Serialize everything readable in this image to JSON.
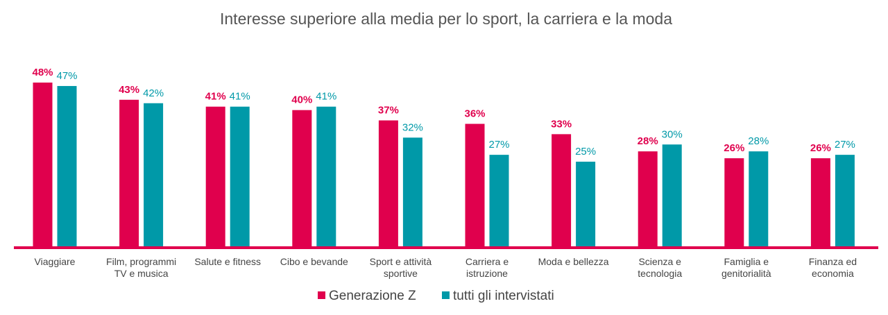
{
  "chart_data": {
    "type": "bar",
    "title": "Interesse superiore alla media per lo sport, la carriera e la moda",
    "xlabel": "",
    "ylabel": "",
    "ylim": [
      0,
      48
    ],
    "categories": [
      [
        "Viaggiare"
      ],
      [
        "Film, programmi",
        "TV e musica"
      ],
      [
        "Salute e fitness"
      ],
      [
        "Cibo e bevande"
      ],
      [
        "Sport e attività",
        "sportive"
      ],
      [
        "Carriera e",
        "istruzione"
      ],
      [
        "Moda e bellezza"
      ],
      [
        "Scienza e",
        "tecnologia"
      ],
      [
        "Famiglia e",
        "genitorialità"
      ],
      [
        "Finanza ed",
        "economia"
      ]
    ],
    "series": [
      {
        "name": "Generazione Z",
        "color": "#e0004d",
        "values": [
          48,
          43,
          41,
          40,
          37,
          36,
          33,
          28,
          26,
          26
        ],
        "labels": [
          "48%",
          "43%",
          "41%",
          "40%",
          "37%",
          "36%",
          "33%",
          "28%",
          "26%",
          "26%"
        ]
      },
      {
        "name": "tutti gli intervistati",
        "color": "#0099a8",
        "values": [
          47,
          42,
          41,
          41,
          32,
          27,
          25,
          30,
          28,
          27
        ],
        "labels": [
          "47%",
          "42%",
          "41%",
          "41%",
          "32%",
          "27%",
          "25%",
          "30%",
          "28%",
          "27%"
        ]
      }
    ],
    "legend": "bottom",
    "grid": false
  }
}
